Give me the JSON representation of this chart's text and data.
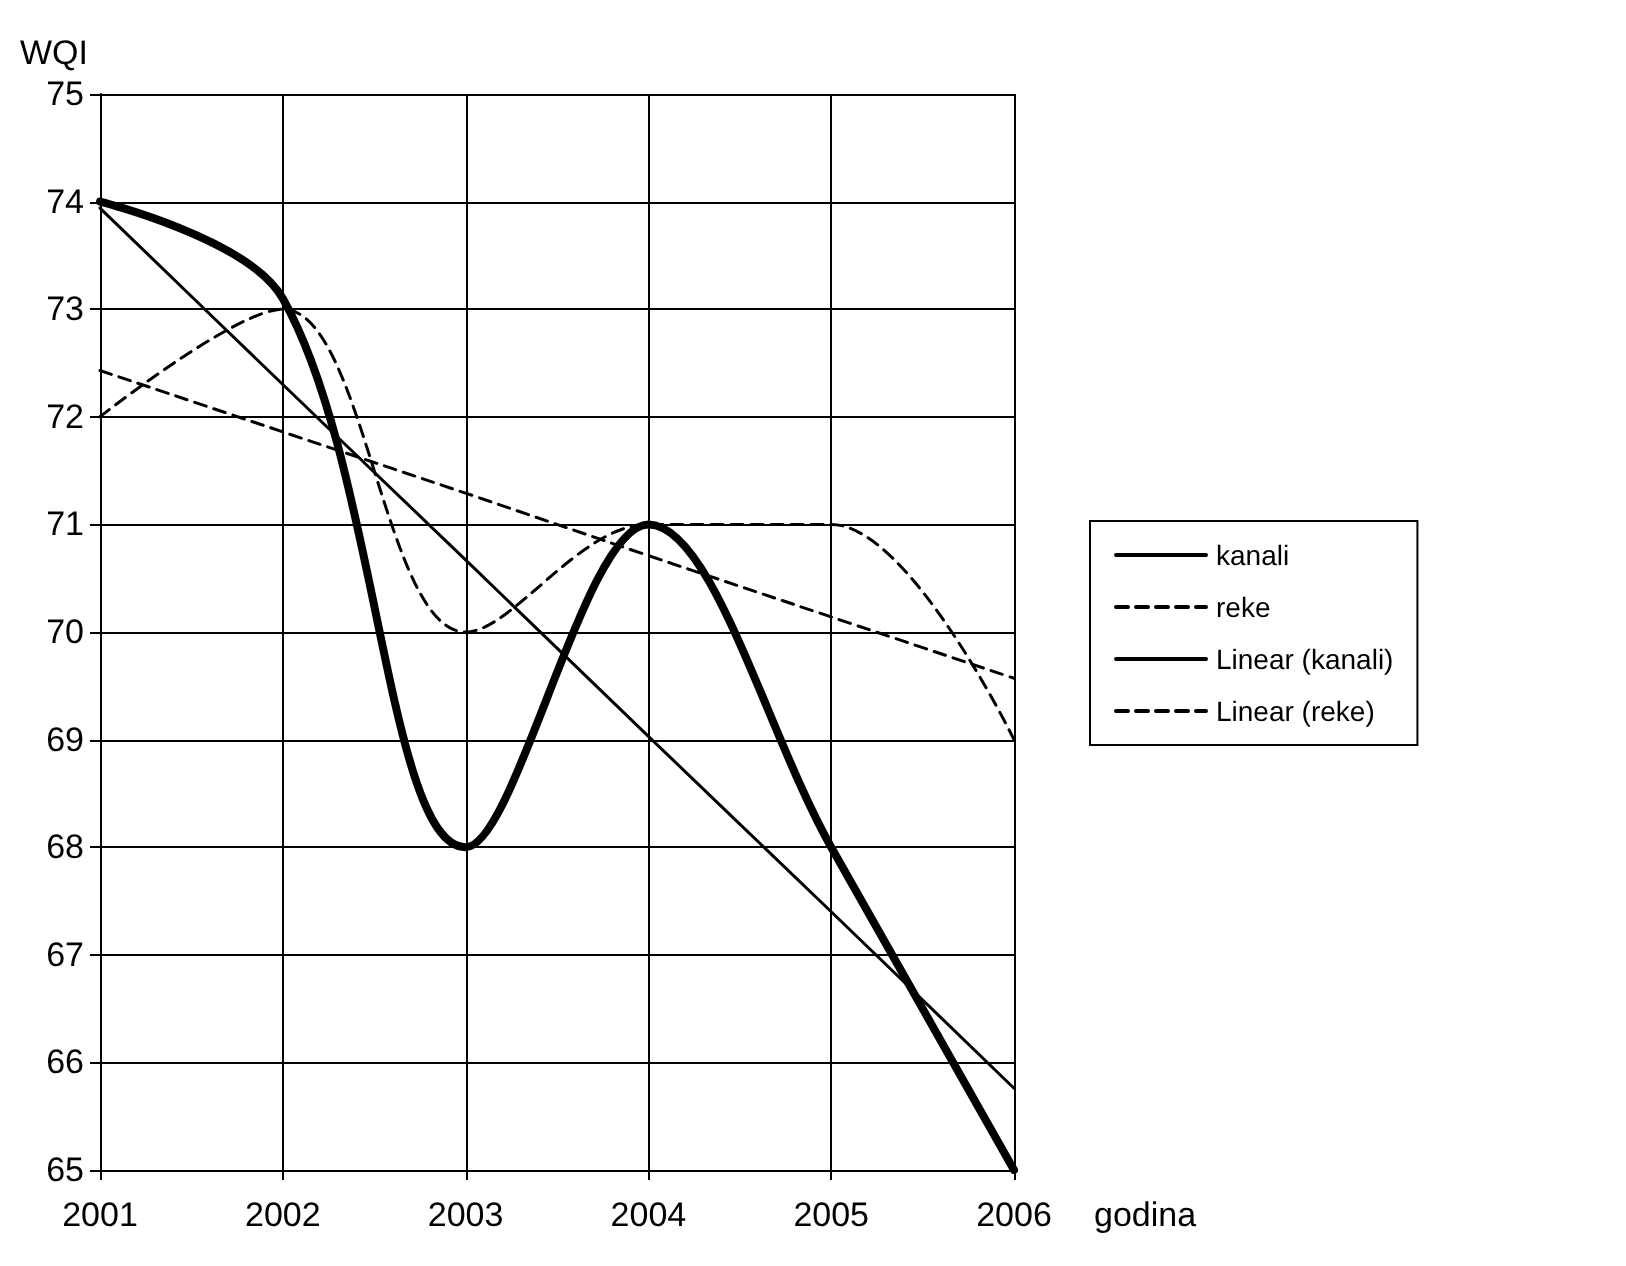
{
  "chart_data": {
    "type": "line",
    "xlabel": "godina",
    "ylabel": "WQI",
    "x": [
      2001,
      2002,
      2003,
      2004,
      2005,
      2006
    ],
    "xlim": [
      2001,
      2006
    ],
    "xticks": [
      2001,
      2002,
      2003,
      2004,
      2005,
      2006
    ],
    "ylim": [
      65,
      75
    ],
    "yticks": [
      65,
      66,
      67,
      68,
      69,
      70,
      71,
      72,
      73,
      74,
      75
    ],
    "grid": true,
    "legend": "right",
    "marker": "none",
    "series": [
      {
        "name": "kanali",
        "color": "#000000",
        "line_style": "solid",
        "values": [
          74,
          73.1,
          68,
          71,
          68,
          65
        ]
      },
      {
        "name": "reke",
        "color": "#000000",
        "line_style": "dashed",
        "values": [
          72,
          73,
          70,
          71,
          71,
          69
        ]
      },
      {
        "name": "Linear (kanali)",
        "color": "#000000",
        "line_style": "solid",
        "values": [
          73.94,
          72.3,
          70.67,
          69.03,
          67.4,
          65.76
        ]
      },
      {
        "name": "Linear (reke)",
        "color": "#000000",
        "line_style": "dashed",
        "values": [
          72.43,
          71.86,
          71.29,
          70.71,
          70.14,
          69.57
        ]
      }
    ]
  }
}
